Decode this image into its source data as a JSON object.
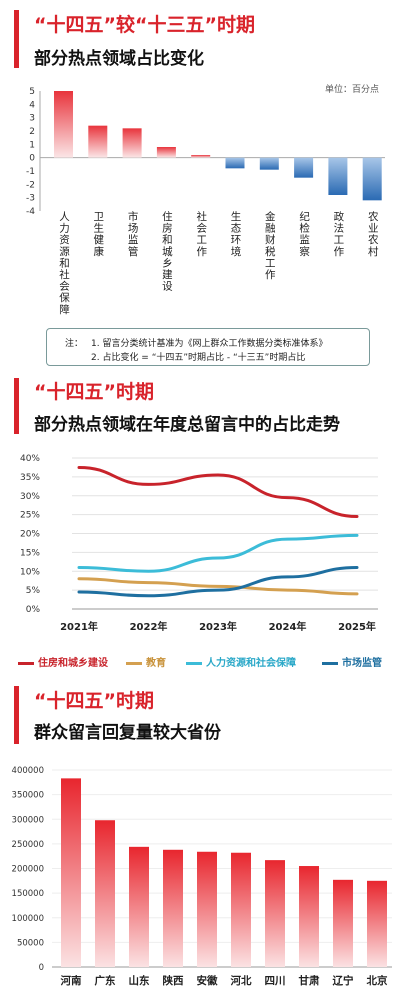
{
  "sections": {
    "s1": {
      "title_red": "“十四五”较“十三五”时期",
      "title_dark": "部分热点领域占比变化",
      "unit": "单位：百分点"
    },
    "s2": {
      "title_red": "“十四五”时期",
      "title_dark": "部分热点领域在年度总留言中的占比走势"
    },
    "s3": {
      "title_red": "“十四五”时期",
      "title_dark": "群众留言回复量较大省份"
    }
  },
  "note": {
    "label": "注：",
    "line1": "1. 留言分类统计基准为《网上群众工作数据分类标准体系》",
    "line2": "2. 占比变化 = “十四五”时期占比 - “十三五”时期占比"
  },
  "colors": {
    "accent": "#d9232b",
    "bar_positive": "#e8343c",
    "bar_negative": "#2a6ab3",
    "line_housing": "#c8232b",
    "line_education": "#d4a050",
    "line_hr": "#3cbcd8",
    "line_market": "#1e6fa0"
  },
  "chart_data": [
    {
      "type": "bar",
      "categories": [
        "人力资源和社会保障",
        "卫生健康",
        "市场监管",
        "住房和城乡建设",
        "社会工作",
        "生态环境",
        "金融财税工作",
        "纪检监察",
        "政法工作",
        "农业农村"
      ],
      "values": [
        5.0,
        2.4,
        2.2,
        0.8,
        0.2,
        -0.8,
        -0.9,
        -1.5,
        -2.8,
        -3.2
      ],
      "ylim": [
        -4,
        5
      ],
      "yticks": [
        "5",
        "4",
        "3",
        "2",
        "1",
        "0",
        "-1",
        "-2",
        "-3",
        "-4"
      ],
      "title": "部分热点领域占比变化",
      "ylabel": "单位：百分点"
    },
    {
      "type": "line",
      "x": [
        "2021年",
        "2022年",
        "2023年",
        "2024年",
        "2025年"
      ],
      "series": [
        {
          "name": "住房和城乡建设",
          "values": [
            37.5,
            33,
            35.5,
            29.5,
            24.5
          ]
        },
        {
          "name": "教育",
          "values": [
            8,
            7,
            6,
            5,
            4
          ]
        },
        {
          "name": "人力资源和社会保障",
          "values": [
            11,
            10,
            13.5,
            18.5,
            19.5
          ]
        },
        {
          "name": "市场监管",
          "values": [
            4.5,
            3.5,
            5,
            8.5,
            11
          ]
        }
      ],
      "ylim": [
        0,
        40
      ],
      "yticks": [
        "0%",
        "5%",
        "10%",
        "15%",
        "20%",
        "25%",
        "30%",
        "35%",
        "40%"
      ],
      "title": "部分热点领域在年度总留言中的占比走势"
    },
    {
      "type": "bar",
      "categories": [
        "河南",
        "广东",
        "山东",
        "陕西",
        "安徽",
        "河北",
        "四川",
        "甘肃",
        "辽宁",
        "北京"
      ],
      "values": [
        383000,
        298000,
        244000,
        238000,
        234000,
        232000,
        217000,
        205000,
        177000,
        175000
      ],
      "ylim": [
        0,
        400000
      ],
      "yticks": [
        "0",
        "50000",
        "100000",
        "150000",
        "200000",
        "250000",
        "300000",
        "350000",
        "400000"
      ],
      "title": "群众留言回复量较大省份"
    }
  ]
}
